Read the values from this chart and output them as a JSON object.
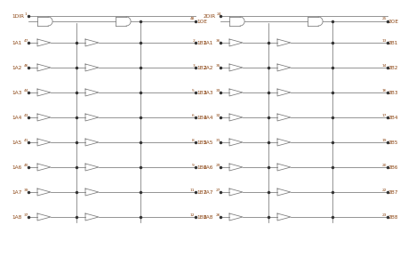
{
  "bg_color": "#ffffff",
  "line_color": "#777777",
  "label_color": "#8B4513",
  "pin_color": "#8B4513",
  "left": {
    "dir_label": "1DIR",
    "dir_pin": "1",
    "oe_label": "1OE",
    "oe_pin": "48",
    "a_labels": [
      "1A1",
      "1A2",
      "1A3",
      "1A4",
      "1A5",
      "1A6",
      "1A7",
      "1A8"
    ],
    "a_pins": [
      "47",
      "46",
      "44",
      "43",
      "41",
      "40",
      "39",
      "37"
    ],
    "b_labels": [
      "1B1",
      "1B2",
      "1B3",
      "1B4",
      "1B5",
      "1B6",
      "1B7",
      "1B8"
    ],
    "b_pins": [
      "2",
      "3",
      "5",
      "6",
      "8",
      "9",
      "11",
      "12"
    ]
  },
  "right": {
    "dir_label": "2DIR",
    "dir_pin": "24",
    "oe_label": "2OE",
    "oe_pin": "25",
    "a_labels": [
      "2A1",
      "2A2",
      "2A3",
      "2A4",
      "2A5",
      "2A6",
      "2A7",
      "2A8"
    ],
    "a_pins": [
      "36",
      "35",
      "33",
      "32",
      "31",
      "29",
      "27",
      "26"
    ],
    "b_labels": [
      "2B1",
      "2B2",
      "2B3",
      "2B4",
      "2B5",
      "2B6",
      "2B7",
      "2B8"
    ],
    "b_pins": [
      "13",
      "14",
      "16",
      "17",
      "19",
      "20",
      "22",
      "23"
    ]
  }
}
